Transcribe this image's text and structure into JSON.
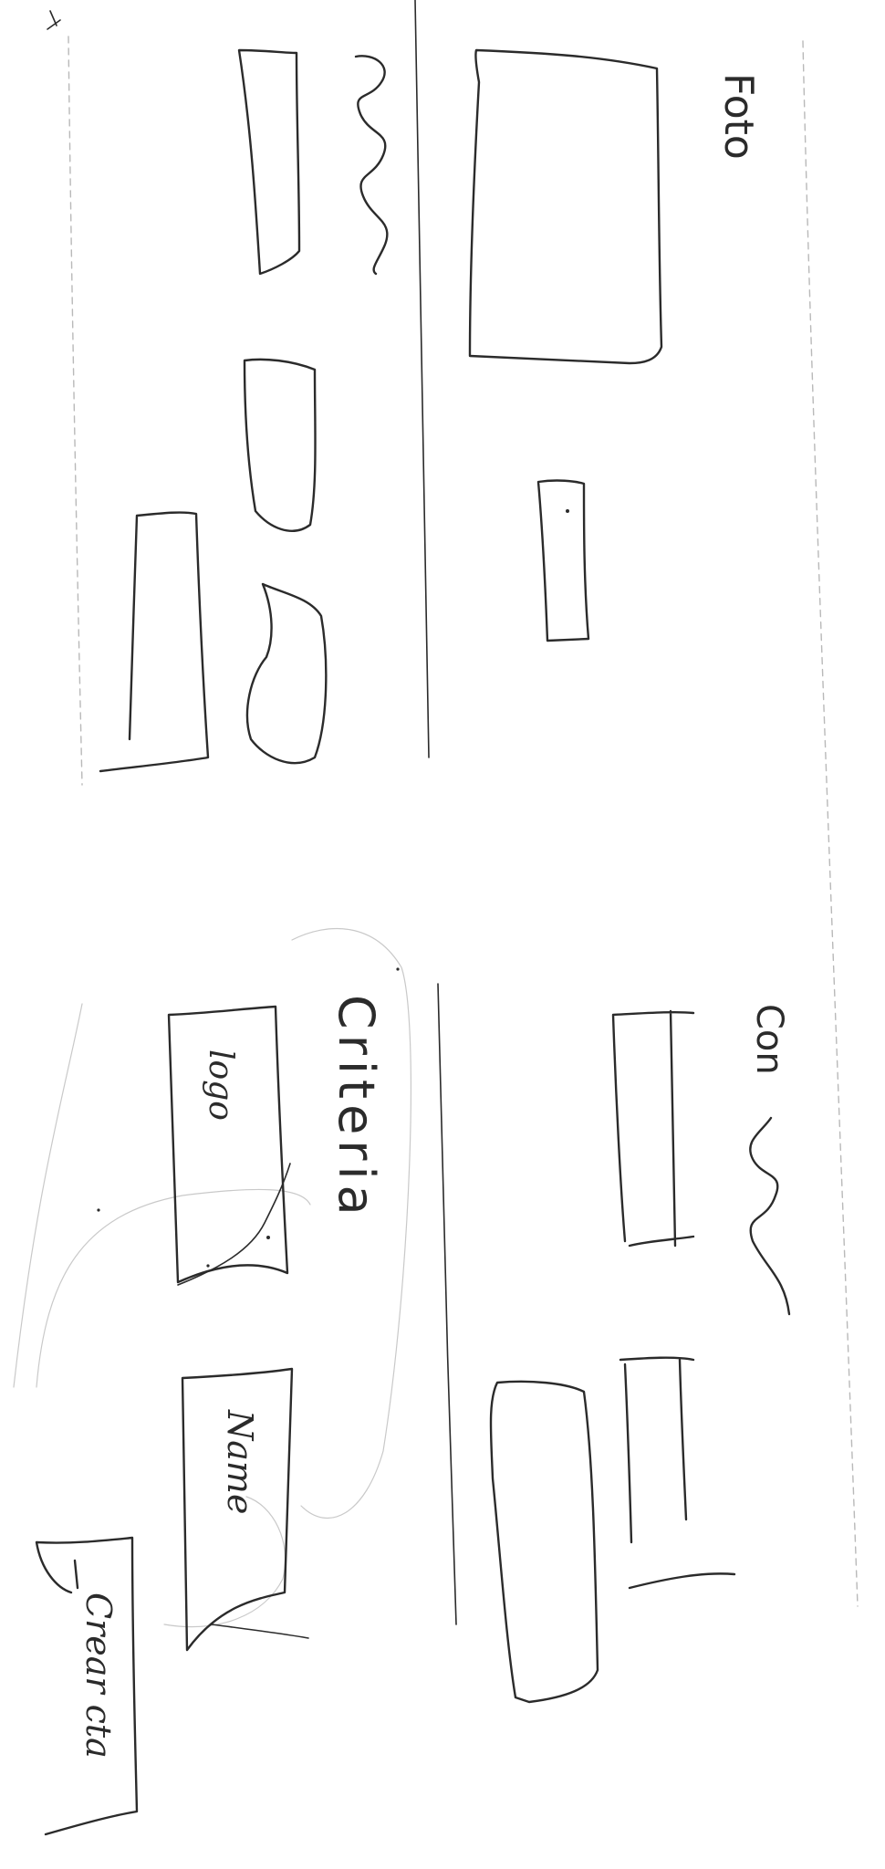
{
  "sketch": {
    "labels": {
      "foto": "Foto",
      "criteria": "Criteria",
      "logo": "logo",
      "name": "Name",
      "create": "Crear cta",
      "contact": "Con"
    },
    "colors": {
      "ink": "#2b2b2b",
      "guide": "#b9b9b9",
      "background": "#ffffff"
    }
  }
}
